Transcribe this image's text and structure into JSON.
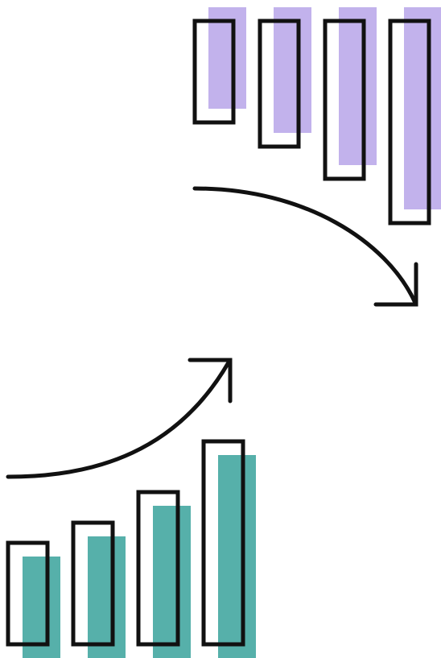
{
  "colors": {
    "background": "#ffffff",
    "outline": "#111111",
    "teal_fill": "#56b0aa",
    "purple_fill": "#c2b2ec"
  },
  "groups": [
    {
      "name": "rising-bars",
      "direction": "up",
      "fill_color": "#56b0aa",
      "relative_heights": [
        0.5,
        0.6,
        0.75,
        1.0
      ],
      "arrow": "curved-arrow-up-right"
    },
    {
      "name": "falling-bars",
      "direction": "down",
      "fill_color": "#c2b2ec",
      "relative_heights": [
        0.5,
        0.62,
        0.78,
        1.0
      ],
      "arrow": "curved-arrow-down-right"
    }
  ]
}
